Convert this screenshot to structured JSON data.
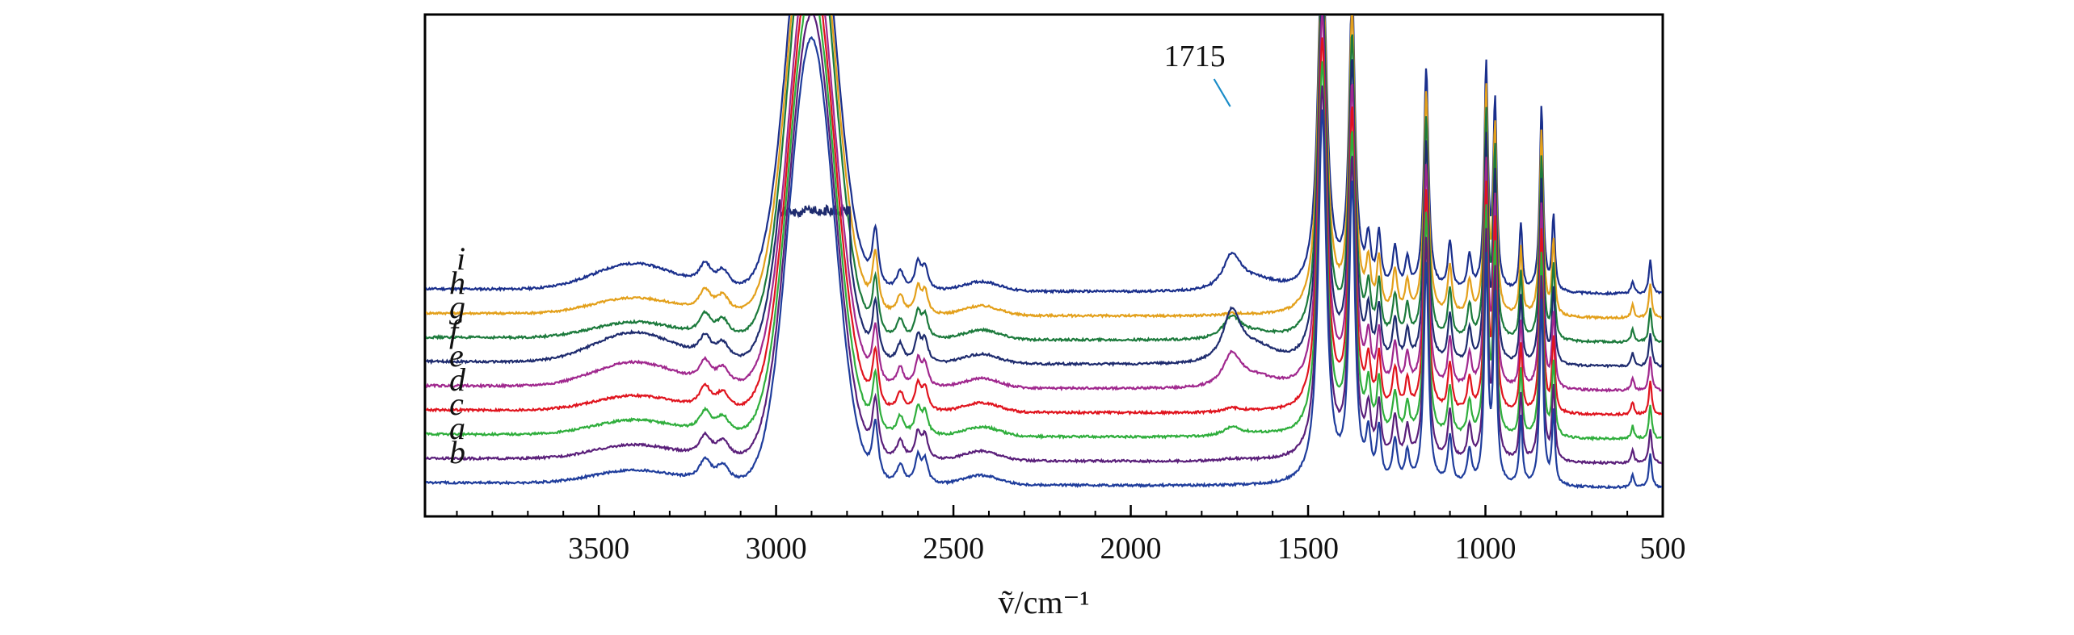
{
  "chart_data": {
    "type": "line",
    "title": "",
    "xlabel": "ṽ/cm⁻¹",
    "ylabel": "",
    "xlim": [
      3990,
      500
    ],
    "x_reversed": true,
    "y_ticks_shown": false,
    "grid": false,
    "legend": "none",
    "x_ticks": [
      3500,
      3000,
      2500,
      2000,
      1500,
      1000,
      500
    ],
    "annotations": [
      {
        "label": "1715",
        "x": 1715
      }
    ],
    "series": [
      {
        "name": "i",
        "color": "#1a2f8c",
        "offset": 8,
        "bands": {
          "1715": 0.9,
          "3400": 0.35,
          "2900": 0
        }
      },
      {
        "name": "h",
        "color": "#e3a01b",
        "offset": 7,
        "bands": {
          "1715": 0.05,
          "3400": 0.08,
          "2900": 0
        }
      },
      {
        "name": "g",
        "color": "#1c7a3c",
        "offset": 6,
        "bands": {
          "1715": 0.55,
          "3400": 0.08,
          "2900": 0
        }
      },
      {
        "name": "f",
        "color": "#1e2b6e",
        "offset": 5,
        "bands": {
          "1715": 1.3,
          "3400": 0.45,
          "2900": 1
        }
      },
      {
        "name": "e",
        "color": "#a0288e",
        "offset": 4,
        "bands": {
          "1715": 0.85,
          "3400": 0.3,
          "2900": 0
        }
      },
      {
        "name": "d",
        "color": "#e0141e",
        "offset": 3,
        "bands": {
          "1715": 0.1,
          "3400": 0.05,
          "2900": 0
        }
      },
      {
        "name": "c",
        "color": "#2fae3c",
        "offset": 2,
        "bands": {
          "1715": 0.22,
          "3400": 0.05,
          "2900": 0
        }
      },
      {
        "name": "a",
        "color": "#5a1f7a",
        "offset": 1,
        "bands": {
          "1715": 0.05,
          "3400": 0.03,
          "2900": 0
        }
      },
      {
        "name": "b",
        "color": "#1f3d9c",
        "offset": 0,
        "bands": {
          "1715": 0.0,
          "3400": 0.0,
          "2900": 0
        }
      }
    ]
  }
}
